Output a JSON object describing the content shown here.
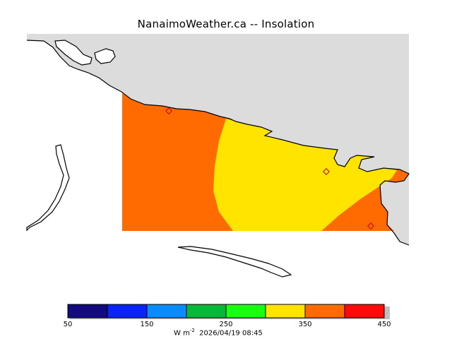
{
  "title": "NanaimoWeather.ca -- Insolation",
  "legend": {
    "colors": [
      "#120a7e",
      "#0a24f5",
      "#0a8cff",
      "#08b838",
      "#18ff10",
      "#ffe400",
      "#ff6b00",
      "#ff0a0a"
    ],
    "ticks": [
      "50",
      "150",
      "250",
      "350",
      "450"
    ],
    "unit_prefix": "W m",
    "unit_exponent": "-2",
    "timestamp": "2026/04/19 08:45"
  },
  "map": {
    "land_color": "#dcdcdc",
    "zones": [
      {
        "name": "orange-zone",
        "color": "#ff6b00"
      },
      {
        "name": "yellow-zone",
        "color": "#ffe400"
      }
    ]
  }
}
